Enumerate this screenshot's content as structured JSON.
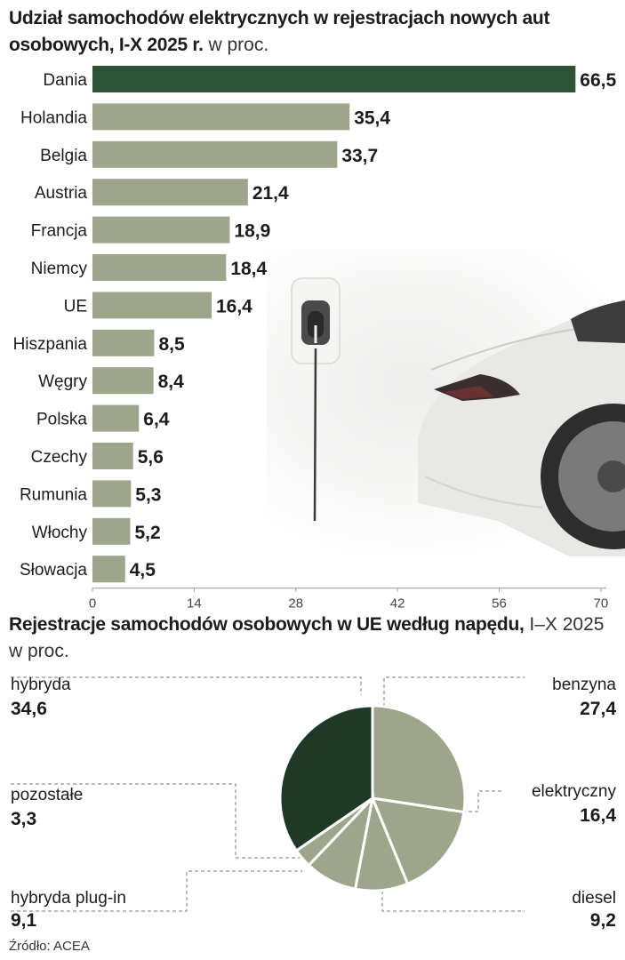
{
  "title": {
    "bold": "Udział samochodów elektrycznych w rejestracjach nowych aut osobowych, I-X 2025 r.",
    "unit": "w proc."
  },
  "pie_title": {
    "bold": "Rejestracje samochodów osobowych w UE według napędu,",
    "sub": "I–X 2025 w proc."
  },
  "pie_labels": {
    "hybryda": "hybryda",
    "benzyna": "benzyna",
    "pozostale": "pozostałe",
    "elektryczny": "elektryczny",
    "plugin": "hybryda plug-in",
    "diesel": "diesel"
  },
  "pie_values": {
    "hybryda": "34,6",
    "benzyna": "27,4",
    "pozostale": "3,3",
    "elektryczny": "16,4",
    "plugin": "9,1",
    "diesel": "9,2"
  },
  "source": "Źródło: ACEA",
  "colors": {
    "bar": "#9da68b",
    "bar_highlight": "#2e5236",
    "pie_dark": "#1e3a26",
    "pie_light": "#9da68b",
    "text": "#1c1c1c"
  },
  "chart_data": [
    {
      "type": "bar",
      "orientation": "horizontal",
      "title": "Udział samochodów elektrycznych w rejestracjach nowych aut osobowych, I-X 2025 r.",
      "unit": "w proc.",
      "categories": [
        "Dania",
        "Holandia",
        "Belgia",
        "Austria",
        "Francja",
        "Niemcy",
        "UE",
        "Hiszpania",
        "Węgry",
        "Polska",
        "Czechy",
        "Rumunia",
        "Włochy",
        "Słowacja"
      ],
      "values": [
        66.5,
        35.4,
        33.7,
        21.4,
        18.9,
        18.4,
        16.4,
        8.5,
        8.4,
        6.4,
        5.6,
        5.3,
        5.2,
        4.5
      ],
      "value_labels": [
        "66,5",
        "35,4",
        "33,7",
        "21,4",
        "18,9",
        "18,4",
        "16,4",
        "8,5",
        "8,4",
        "6,4",
        "5,6",
        "5,3",
        "5,2",
        "4,5"
      ],
      "highlight": "Dania",
      "xlim": [
        0,
        70
      ],
      "xticks": [
        0,
        14,
        28,
        42,
        56,
        70
      ],
      "grid": false
    },
    {
      "type": "pie",
      "title": "Rejestracje samochodów osobowych w UE według napędu,",
      "subtitle": "I–X 2025 w proc.",
      "labels": [
        "benzyna",
        "elektryczny",
        "diesel",
        "hybryda plug-in",
        "pozostałe",
        "hybryda"
      ],
      "values": [
        27.4,
        16.4,
        9.2,
        9.1,
        3.3,
        34.6
      ],
      "start": "12 o'clock",
      "direction": "clockwise"
    }
  ]
}
